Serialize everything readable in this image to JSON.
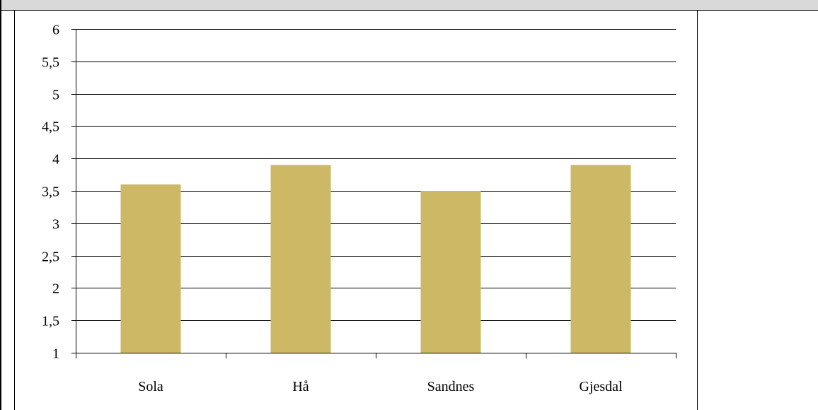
{
  "chart_data": {
    "type": "bar",
    "categories": [
      "Sola",
      "Hå",
      "Sandnes",
      "Gjesdal"
    ],
    "values": [
      3.6,
      3.9,
      3.5,
      3.9
    ],
    "y_ticks": [
      "1",
      "1,5",
      "2",
      "2,5",
      "3",
      "3,5",
      "4",
      "4,5",
      "5",
      "5,5",
      "6"
    ],
    "ylim": [
      1,
      6
    ],
    "grid": true,
    "legend": "none",
    "bar_color": "#cdb866",
    "title": "",
    "xlabel": "",
    "ylabel": ""
  }
}
